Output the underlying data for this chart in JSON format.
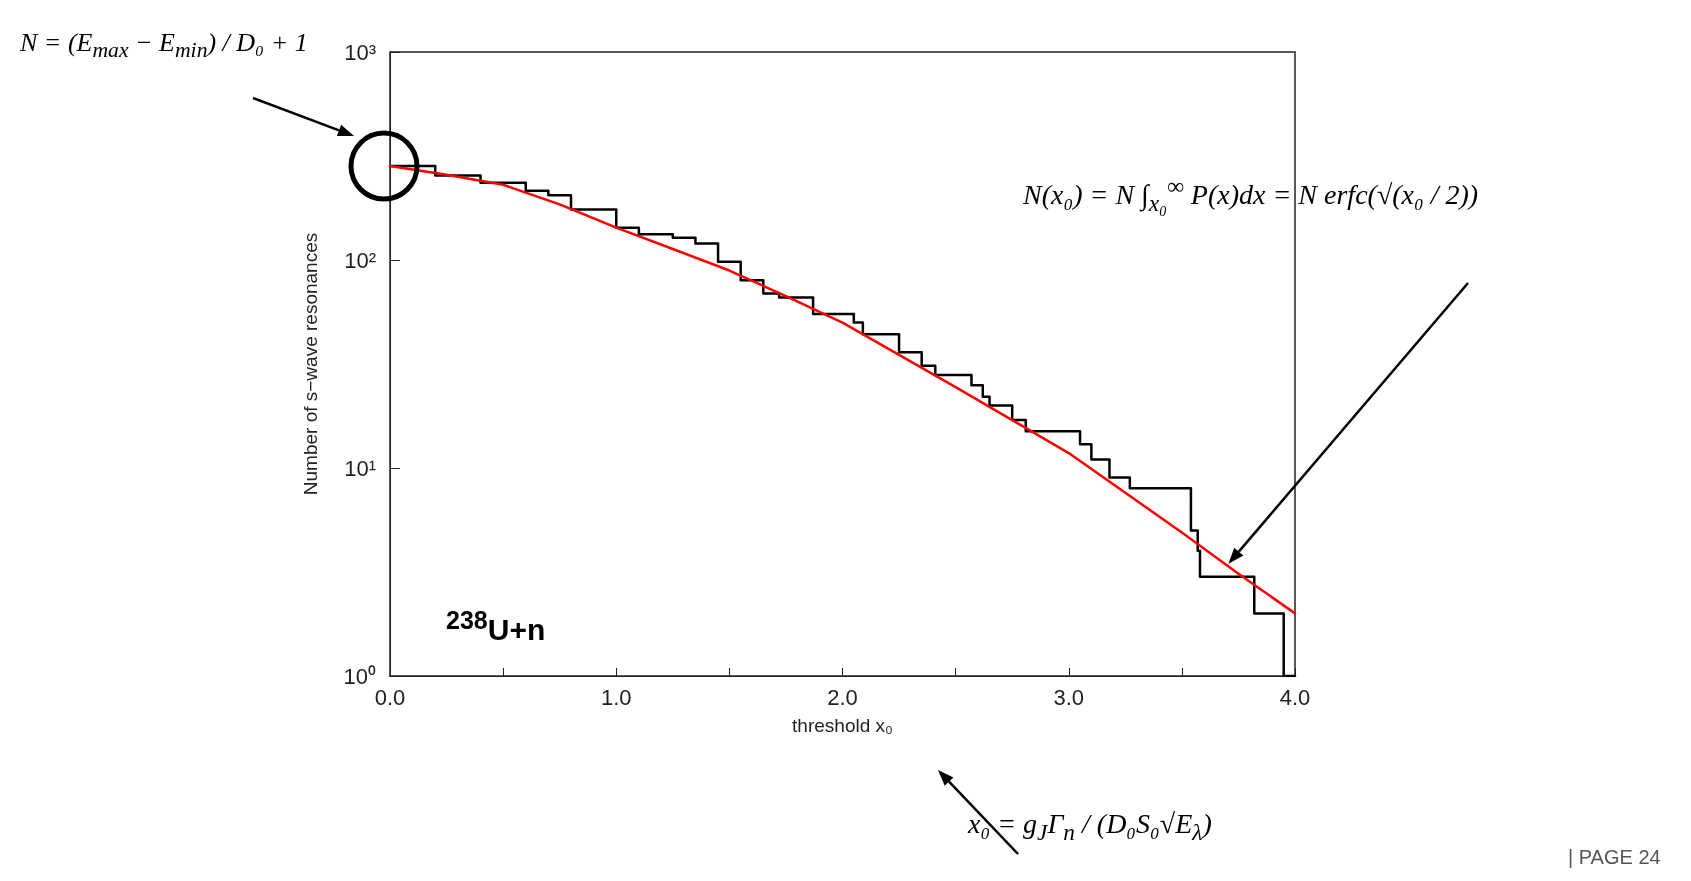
{
  "chart_data": {
    "type": "step",
    "xlabel": "threshold x₀",
    "ylabel": "Number of s−wave resonances",
    "log": "y",
    "grid": false,
    "marker": "none",
    "line_style": "solid",
    "xlim": [
      0,
      4
    ],
    "xticks": [
      {
        "value": 0,
        "label": "0.0"
      },
      {
        "value": 0.5,
        "label": null
      },
      {
        "value": 1,
        "label": "1.0"
      },
      {
        "value": 1.5,
        "label": null
      },
      {
        "value": 2,
        "label": "2.0"
      },
      {
        "value": 2.5,
        "label": null
      },
      {
        "value": 3,
        "label": "3.0"
      },
      {
        "value": 3.5,
        "label": null
      },
      {
        "value": 4,
        "label": "4.0"
      }
    ],
    "ylim": [
      1,
      1000
    ],
    "yticks": [
      {
        "value": 1,
        "label": "10⁰"
      },
      {
        "value": 10,
        "label": "10¹"
      },
      {
        "value": 100,
        "label": "10²"
      },
      {
        "value": 1000,
        "label": "10³"
      }
    ],
    "series": [
      {
        "color": "#000000",
        "x": [
          0,
          0.2,
          0.4,
          0.6,
          0.7,
          0.8,
          1.0,
          1.1,
          1.25,
          1.35,
          1.45,
          1.55,
          1.65,
          1.72,
          1.87,
          2.05,
          2.09,
          2.25,
          2.35,
          2.41,
          2.57,
          2.62,
          2.65,
          2.75,
          2.81,
          3.05,
          3.1,
          3.18,
          3.27,
          3.54,
          3.57,
          3.58,
          3.82,
          3.95,
          4.0
        ],
        "values": [
          283,
          255,
          235,
          215,
          205,
          175,
          143,
          133,
          128,
          120,
          98,
          80,
          69,
          66,
          55,
          50,
          44,
          36,
          31,
          28,
          25,
          22,
          20,
          17,
          15,
          13,
          11,
          9,
          8,
          5,
          4,
          3,
          2,
          1,
          1
        ]
      },
      {
        "type": "line",
        "color": "#ff0000",
        "x": [
          0,
          0.25,
          0.5,
          0.75,
          1,
          1.25,
          1.5,
          1.75,
          2,
          2.25,
          2.5,
          2.75,
          3,
          3.25,
          3.5,
          3.75,
          4
        ],
        "values": [
          283,
          257,
          230,
          185,
          143,
          113,
          89,
          67,
          50,
          35,
          24.5,
          17,
          11.8,
          7.6,
          4.9,
          3.1,
          2.0
        ]
      }
    ],
    "annotations": [
      "N = (E$_{max}$ − E$_{min}$) / D₀ + 1",
      "N(x₀) = N ∫$_{x₀}$$^{∞}$ P(x)dx = N erfc(√(x₀ / 2))",
      "x₀ = g$_{J}$Γ$_{n}$ / (D₀S₀√E$_{λ}$)",
      "$^{238}$U+n",
      "| PAGE 24"
    ]
  }
}
